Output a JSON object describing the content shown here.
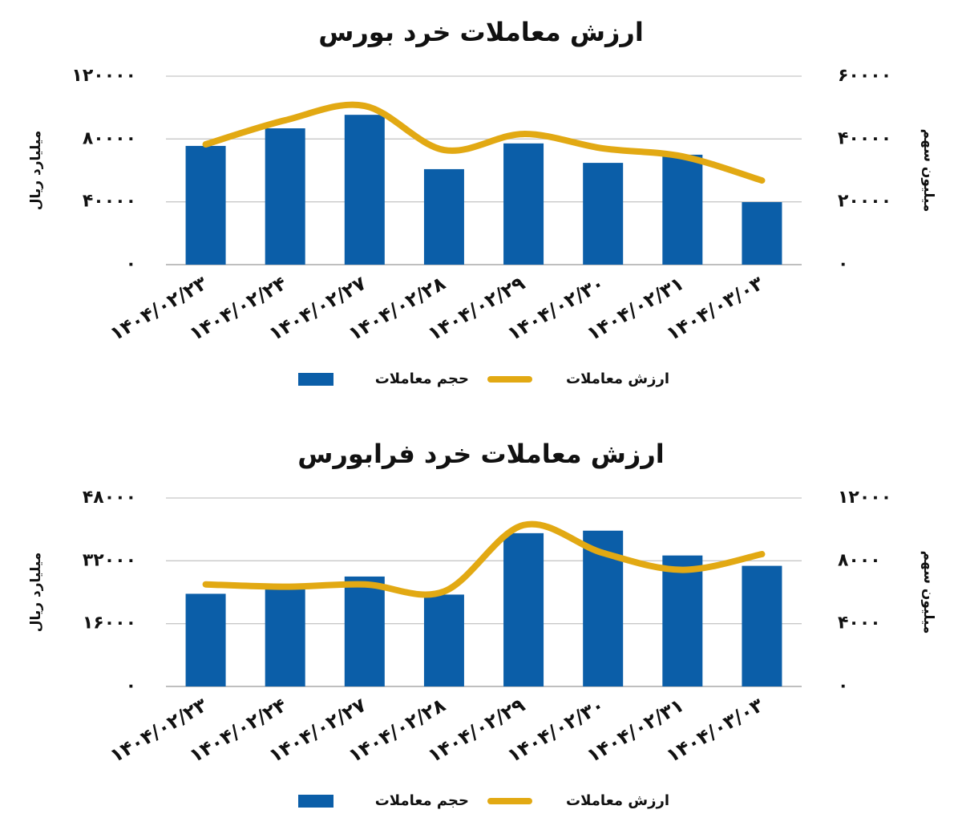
{
  "chart_data": [
    {
      "type": "combo",
      "title": "ارزش معاملات خرد بورس",
      "y_label": "میلیارد ریال",
      "y2_label": "میلیون سهم",
      "categories": [
        "۱۴۰۴/۰۲/۲۳",
        "۱۴۰۴/۰۲/۲۴",
        "۱۴۰۴/۰۲/۲۷",
        "۱۴۰۴/۰۲/۲۸",
        "۱۴۰۴/۰۲/۲۹",
        "۱۴۰۴/۰۲/۳۰",
        "۱۴۰۴/۰۲/۳۱",
        "۱۴۰۴/۰۳/۰۳"
      ],
      "series": [
        {
          "name": "حجم معاملات",
          "color": "#0b5ea8",
          "type": "bar",
          "axis": "y2",
          "values": [
            37800,
            43400,
            47700,
            30400,
            38600,
            32400,
            35000,
            19900
          ]
        },
        {
          "name": "ارزش معاملات",
          "color": "#e2a913",
          "type": "line",
          "values": [
            76600,
            91900,
            101100,
            73000,
            83200,
            74000,
            68900,
            53600
          ]
        }
      ],
      "ylim": [
        0,
        120000
      ],
      "yticks": [
        {
          "value": 0,
          "label": "۰"
        },
        {
          "value": 40000,
          "label": "۴۰۰۰۰"
        },
        {
          "value": 80000,
          "label": "۸۰۰۰۰"
        },
        {
          "value": 120000,
          "label": "۱۲۰۰۰۰"
        }
      ],
      "y2lim": [
        0,
        60000
      ],
      "y2ticks": [
        {
          "value": 0,
          "label": "۰"
        },
        {
          "value": 20000,
          "label": "۲۰۰۰۰"
        },
        {
          "value": 40000,
          "label": "۴۰۰۰۰"
        },
        {
          "value": 60000,
          "label": "۶۰۰۰۰"
        }
      ],
      "grid": true
    },
    {
      "type": "combo",
      "title": "ارزش معاملات خرد فرابورس",
      "y_label": "میلیارد ریال",
      "y2_label": "میلیون سهم",
      "categories": [
        "۱۴۰۴/۰۲/۲۳",
        "۱۴۰۴/۰۲/۲۴",
        "۱۴۰۴/۰۲/۲۷",
        "۱۴۰۴/۰۲/۲۸",
        "۱۴۰۴/۰۲/۲۹",
        "۱۴۰۴/۰۲/۳۰",
        "۱۴۰۴/۰۲/۳۱",
        "۱۴۰۴/۰۳/۰۳"
      ],
      "series": [
        {
          "name": "حجم معاملات",
          "color": "#0b5ea8",
          "type": "bar",
          "axis": "y2",
          "values": [
            5900,
            6400,
            7000,
            5850,
            9760,
            9920,
            8340,
            7680
          ]
        },
        {
          "name": "ارزش معاملات",
          "color": "#e2a913",
          "type": "line",
          "values": [
            26000,
            25400,
            26000,
            24200,
            41100,
            34000,
            29700,
            33700
          ]
        }
      ],
      "ylim": [
        0,
        48000
      ],
      "yticks": [
        {
          "value": 0,
          "label": "۰"
        },
        {
          "value": 16000,
          "label": "۱۶۰۰۰"
        },
        {
          "value": 32000,
          "label": "۳۲۰۰۰"
        },
        {
          "value": 48000,
          "label": "۴۸۰۰۰"
        }
      ],
      "y2lim": [
        0,
        12000
      ],
      "y2ticks": [
        {
          "value": 0,
          "label": "۰"
        },
        {
          "value": 4000,
          "label": "۴۰۰۰"
        },
        {
          "value": 8000,
          "label": "۸۰۰۰"
        },
        {
          "value": 12000,
          "label": "۱۲۰۰۰"
        }
      ],
      "grid": true
    }
  ]
}
